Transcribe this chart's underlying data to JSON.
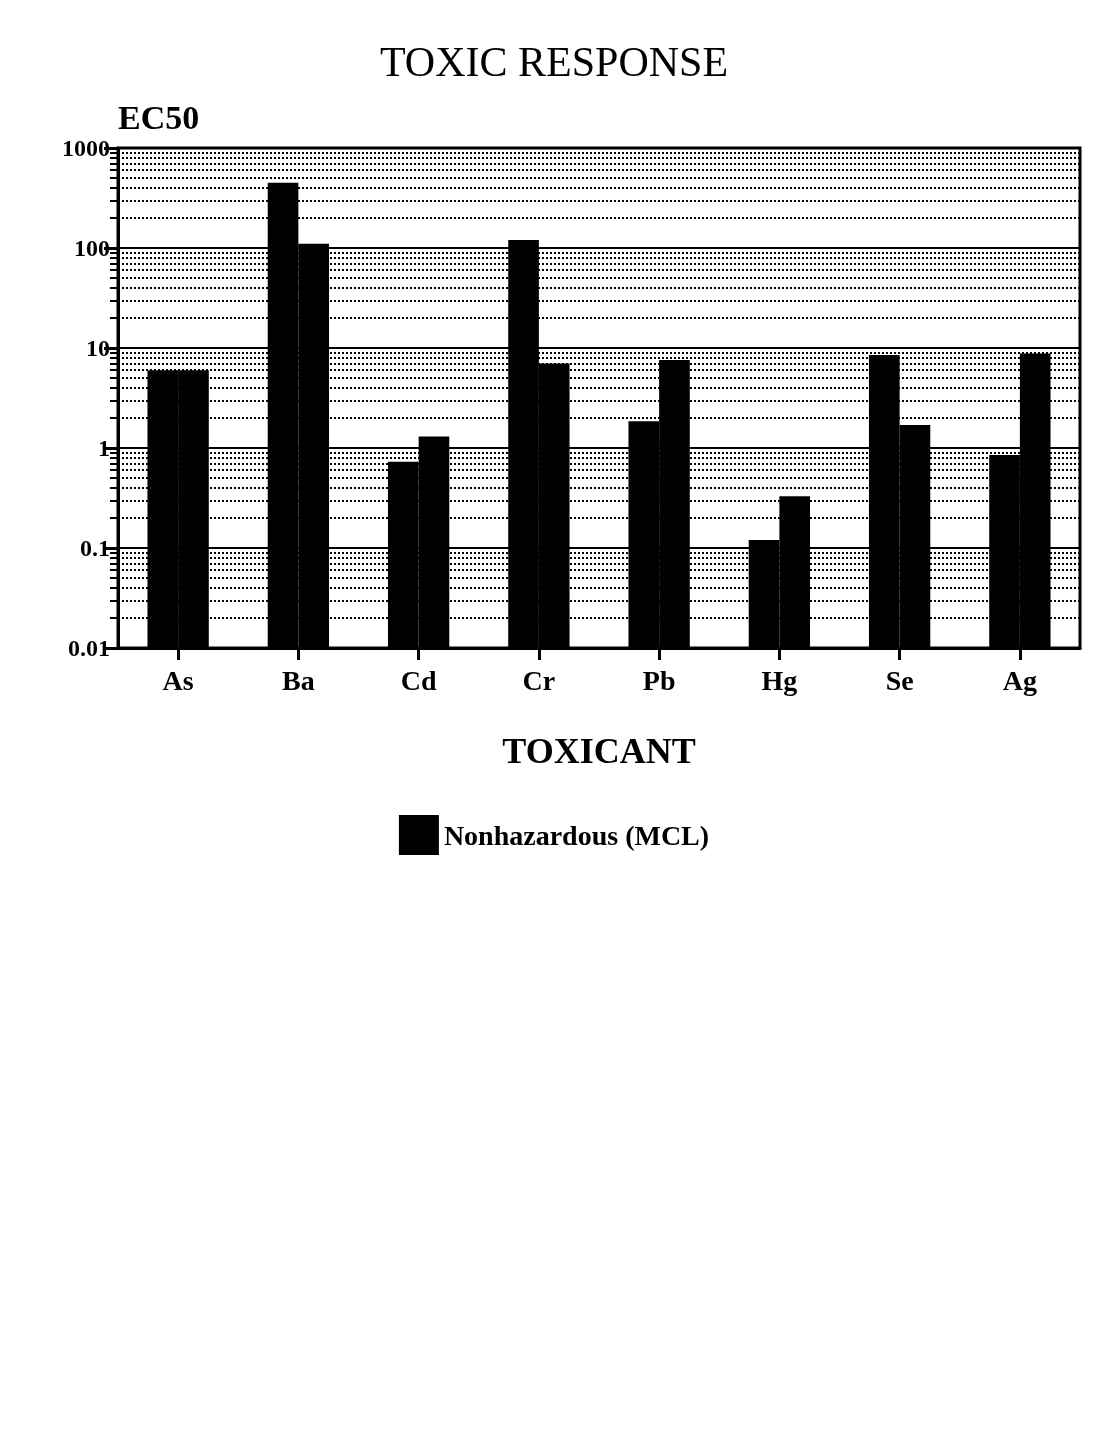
{
  "chart_data": {
    "type": "bar",
    "title": "TOXIC RESPONSE",
    "xlabel": "TOXICANT",
    "ylabel": "EC50",
    "categories": [
      "As",
      "Ba",
      "Cd",
      "Cr",
      "Pb",
      "Hg",
      "Se",
      "Ag"
    ],
    "series": [
      {
        "color": "#000000",
        "values": [
          6,
          450,
          0.73,
          120,
          1.85,
          0.12,
          8.5,
          0.85
        ]
      },
      {
        "name": "Nonhazardous (MCL)",
        "color": "#000000",
        "values": [
          6,
          110,
          1.3,
          7,
          7.6,
          0.33,
          1.7,
          8.8
        ]
      }
    ],
    "log": "y",
    "ylim": [
      0.01,
      1000
    ],
    "yticks": [
      0.01,
      0.1,
      1,
      10,
      100,
      1000
    ],
    "grid": true,
    "legend": "bottom"
  }
}
